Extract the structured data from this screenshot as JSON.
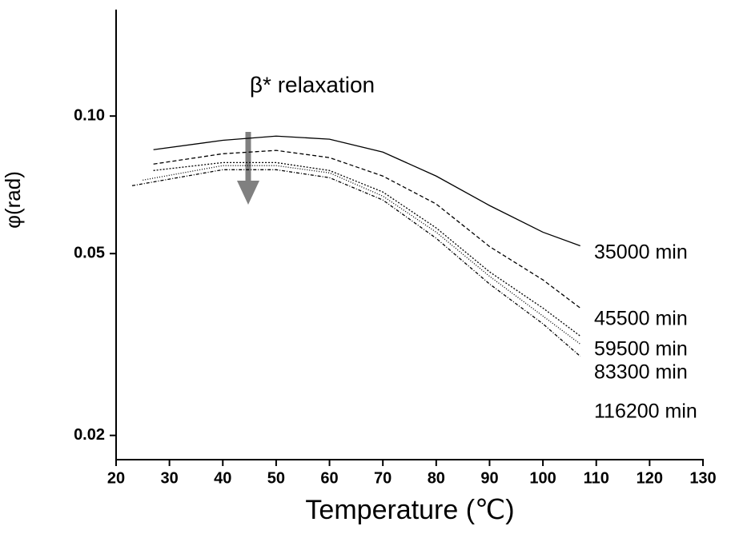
{
  "chart_data": {
    "type": "line",
    "annotation": "β* relaxation",
    "xlabel": "Temperature (℃)",
    "ylabel": "φ(rad)",
    "log_y": true,
    "xlim": [
      20,
      130
    ],
    "xticks": [
      20,
      30,
      40,
      50,
      60,
      70,
      80,
      90,
      100,
      110,
      120,
      130
    ],
    "ylim": [
      0.0177,
      0.171
    ],
    "yticks": [
      {
        "value": 0.1,
        "label": "0.10"
      },
      0.05,
      0.02
    ],
    "series": [
      {
        "name": "35000 min",
        "color": "#000000",
        "x": [
          27,
          40,
          50,
          60,
          70,
          80,
          90,
          100,
          107
        ],
        "values": [
          0.0844,
          0.0885,
          0.0904,
          0.089,
          0.0834,
          0.0739,
          0.0637,
          0.0557,
          0.052
        ]
      },
      {
        "name": "45500 min",
        "color": "#000000",
        "x": [
          27,
          40,
          50,
          60,
          70,
          80,
          90,
          100,
          107
        ],
        "values": [
          0.0785,
          0.0827,
          0.0841,
          0.0811,
          0.0739,
          0.0642,
          0.0518,
          0.0438,
          0.038
        ]
      },
      {
        "name": "59500 min",
        "color": "#000000",
        "x": [
          27,
          40,
          50,
          60,
          70,
          80,
          90,
          100,
          107
        ],
        "values": [
          0.076,
          0.0791,
          0.0791,
          0.076,
          0.0682,
          0.0569,
          0.0456,
          0.038,
          0.033
        ]
      },
      {
        "name": "83300 min",
        "color": "#000000",
        "x": [
          25,
          40,
          50,
          60,
          70,
          80,
          90,
          100,
          107
        ],
        "values": [
          0.0724,
          0.0779,
          0.0779,
          0.0751,
          0.0668,
          0.0557,
          0.0446,
          0.0365,
          0.0317
        ]
      },
      {
        "name": "116200 min",
        "color": "#000000",
        "x": [
          23,
          40,
          50,
          60,
          70,
          80,
          90,
          100,
          107
        ],
        "values": [
          0.0704,
          0.0763,
          0.0763,
          0.0733,
          0.0655,
          0.054,
          0.0429,
          0.0351,
          0.0298
        ]
      }
    ]
  }
}
